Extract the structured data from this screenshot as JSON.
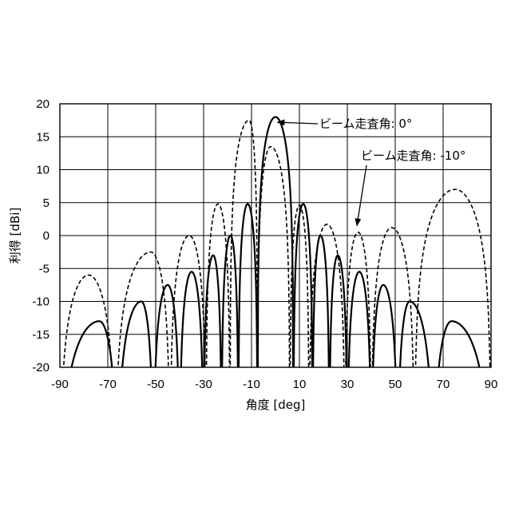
{
  "chart_data": {
    "type": "line",
    "title": "",
    "xlabel": "角度 [deg]",
    "ylabel": "利得 [dBi]",
    "xlim": [
      -90,
      90
    ],
    "ylim": [
      -20,
      20
    ],
    "xticks": [
      -90,
      -70,
      -50,
      -30,
      -10,
      10,
      30,
      50,
      70,
      90
    ],
    "yticks": [
      -20,
      -15,
      -10,
      -5,
      0,
      5,
      10,
      15,
      20
    ],
    "grid": true,
    "series": [
      {
        "name": "ビーム走査角: 0°",
        "style": "solid",
        "color": "#000000",
        "lobes": [
          [
            -90,
            -73.5,
            -66,
            -13
          ],
          [
            -66,
            -56,
            -51,
            -10
          ],
          [
            -51,
            -45,
            -40,
            -7.5
          ],
          [
            -40,
            -35,
            -30,
            -5.5
          ],
          [
            -30,
            -26,
            -22.5,
            -3
          ],
          [
            -22.5,
            -18.8,
            -15.5,
            0
          ],
          [
            -15.5,
            -11.6,
            -7.5,
            4.8
          ],
          [
            -7.5,
            0,
            7.5,
            18
          ],
          [
            7.5,
            11.6,
            15.5,
            4.8
          ],
          [
            15.5,
            18.8,
            22.5,
            0
          ],
          [
            22.5,
            26,
            30,
            -3
          ],
          [
            30,
            35,
            40,
            -5.5
          ],
          [
            40,
            45,
            51,
            -7.5
          ],
          [
            51,
            56,
            66,
            -10
          ],
          [
            66,
            73.5,
            90,
            -13
          ]
        ]
      },
      {
        "name": "ビーム走査角: -10°",
        "style": "dashed",
        "color": "#000000",
        "lobes": [
          [
            -90,
            -78,
            -67,
            -6
          ],
          [
            -67,
            -52,
            -44,
            -2.5
          ],
          [
            -44,
            -36,
            -29,
            0
          ],
          [
            -29,
            -24,
            -19,
            4.8
          ],
          [
            -19,
            -11,
            -7.5,
            17.5
          ],
          [
            -7.5,
            -2,
            6,
            13.5
          ],
          [
            6,
            10,
            14,
            4.6
          ],
          [
            14,
            21.5,
            29,
            1.7
          ],
          [
            29,
            34.5,
            40,
            0.5
          ],
          [
            40,
            48.5,
            58,
            1.2
          ],
          [
            58,
            75,
            90,
            7
          ]
        ]
      }
    ],
    "annotations": [
      {
        "text": "ビーム走査角: 0°",
        "points_to": [
          0.8,
          17.2
        ]
      },
      {
        "text": "ビーム走査角: -10°",
        "points_to": [
          34,
          1.5
        ]
      }
    ]
  }
}
